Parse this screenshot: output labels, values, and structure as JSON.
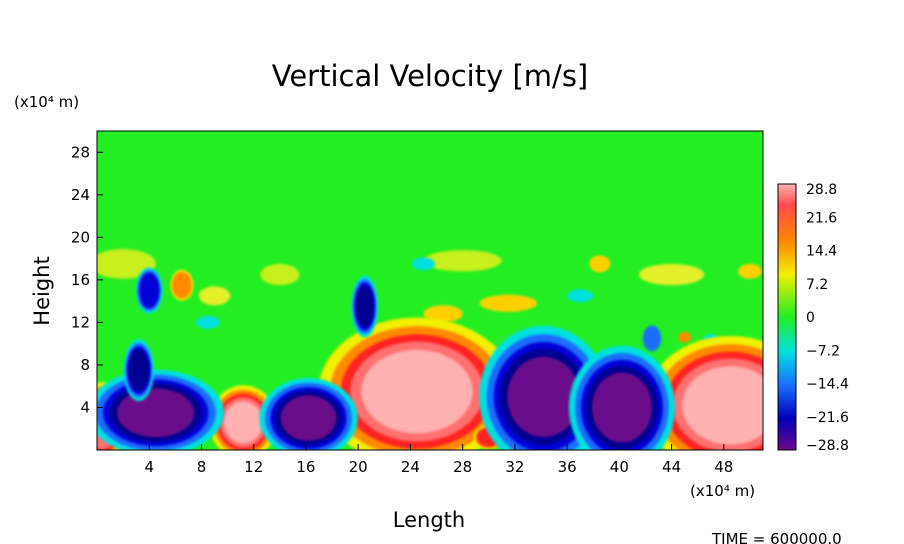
{
  "chart_data": {
    "type": "heatmap",
    "title": "Vertical Velocity [m/s]",
    "xlabel": "Length",
    "ylabel": "Height",
    "x_unit": "(x10⁴ m)",
    "y_unit": "(x10⁴ m)",
    "xlim": [
      0,
      51
    ],
    "ylim": [
      0,
      30
    ],
    "x_ticks": [
      4,
      8,
      12,
      16,
      20,
      24,
      28,
      32,
      36,
      40,
      44,
      48
    ],
    "y_ticks": [
      4,
      8,
      12,
      16,
      20,
      24,
      28
    ],
    "colorbar_ticks": [
      "28.8",
      "21.6",
      "14.4",
      "7.2",
      "0",
      "−7.2",
      "−14.4",
      "−21.6",
      "−28.8"
    ],
    "colorbar_range": [
      -28.8,
      28.8
    ],
    "colorbar_placement": "right",
    "footer": "TIME = 600000.0",
    "colors": {
      "background_field": "#22ee22",
      "max": "#ffb0b0",
      "min": "#6a0a8a"
    },
    "features": [
      {
        "kind": "updraft",
        "x": 24.5,
        "y": 5.5,
        "rx": 5.2,
        "ry": 4.8,
        "value": 28.8
      },
      {
        "kind": "updraft",
        "x": 48.5,
        "y": 4.2,
        "rx": 4.5,
        "ry": 4.5,
        "value": 28.8
      },
      {
        "kind": "updraft",
        "x": 11.2,
        "y": 2.6,
        "rx": 1.8,
        "ry": 2.4,
        "value": 26
      },
      {
        "kind": "updraft",
        "x": 0.4,
        "y": 2.6,
        "rx": 1.2,
        "ry": 2.6,
        "value": 24
      },
      {
        "kind": "updraft",
        "x": 30.0,
        "y": 1.2,
        "rx": 0.8,
        "ry": 0.8,
        "value": 18
      },
      {
        "kind": "downdraft",
        "x": 4.5,
        "y": 3.5,
        "rx": 3.6,
        "ry": 2.8,
        "value": -28.8
      },
      {
        "kind": "downdraft",
        "x": 16.2,
        "y": 3.0,
        "rx": 2.6,
        "ry": 2.6,
        "value": -28.8
      },
      {
        "kind": "downdraft",
        "x": 34.2,
        "y": 5.0,
        "rx": 3.4,
        "ry": 4.6,
        "value": -28.8
      },
      {
        "kind": "downdraft",
        "x": 40.2,
        "y": 4.0,
        "rx": 2.8,
        "ry": 4.0,
        "value": -28.8
      },
      {
        "kind": "downdraft",
        "x": 3.2,
        "y": 7.5,
        "rx": 0.8,
        "ry": 2.0,
        "value": -24
      },
      {
        "kind": "downdraft",
        "x": 20.5,
        "y": 13.5,
        "rx": 0.7,
        "ry": 2.0,
        "value": -24
      },
      {
        "kind": "downdraft",
        "x": 4.0,
        "y": 15.0,
        "rx": 0.7,
        "ry": 1.5,
        "value": -20
      },
      {
        "kind": "updraft",
        "x": 6.5,
        "y": 15.5,
        "rx": 0.6,
        "ry": 1.0,
        "value": 14
      }
    ]
  }
}
